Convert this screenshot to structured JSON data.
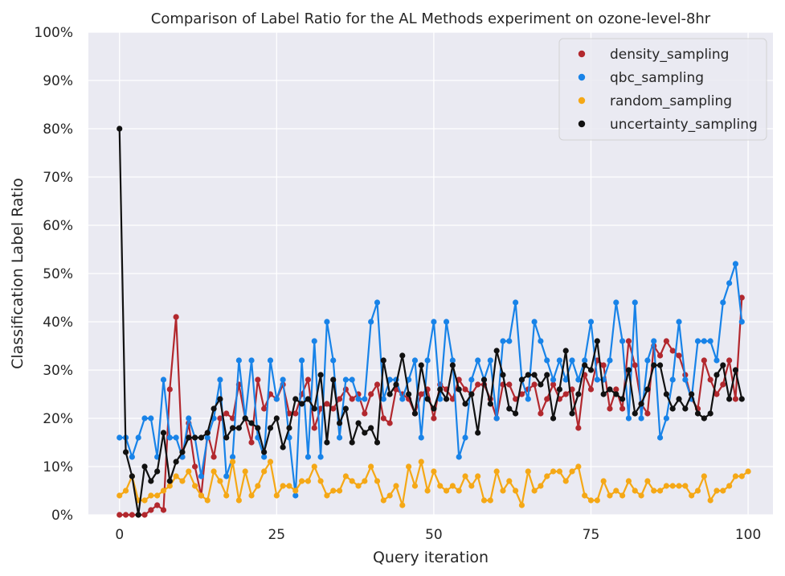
{
  "chart_data": {
    "type": "line",
    "title": "Comparison of Label Ratio for the AL Methods experiment on ozone-level-8hr",
    "xlabel": "Query iteration",
    "ylabel": "Classification Label Ratio",
    "xlim": [
      -4.95,
      103.95
    ],
    "ylim": [
      0,
      1
    ],
    "x_ticks": [
      0,
      25,
      50,
      75,
      100
    ],
    "y_ticks": [
      0,
      0.1,
      0.2,
      0.3,
      0.4,
      0.5,
      0.6,
      0.7,
      0.8,
      0.9,
      1.0
    ],
    "y_tick_labels": [
      "0%",
      "10%",
      "20%",
      "30%",
      "40%",
      "50%",
      "60%",
      "70%",
      "80%",
      "90%",
      "100%"
    ],
    "x_tick_labels": [
      "0",
      "25",
      "50",
      "75",
      "100"
    ],
    "grid": true,
    "legend_position": "top-right",
    "background": "#eaeaf2",
    "series": [
      {
        "name": "density_sampling",
        "color": "#b2282e",
        "values": [
          0,
          0,
          0,
          0,
          0,
          0.01,
          0.02,
          0.01,
          0.26,
          0.41,
          0.12,
          0.19,
          0.1,
          0.04,
          0.17,
          0.12,
          0.2,
          0.21,
          0.2,
          0.27,
          0.2,
          0.15,
          0.28,
          0.22,
          0.25,
          0.24,
          0.27,
          0.21,
          0.21,
          0.25,
          0.28,
          0.18,
          0.22,
          0.23,
          0.22,
          0.24,
          0.26,
          0.24,
          0.25,
          0.21,
          0.25,
          0.27,
          0.2,
          0.19,
          0.26,
          0.25,
          0.24,
          0.21,
          0.25,
          0.26,
          0.2,
          0.27,
          0.26,
          0.24,
          0.28,
          0.26,
          0.25,
          0.27,
          0.27,
          0.24,
          0.2,
          0.27,
          0.27,
          0.24,
          0.25,
          0.26,
          0.27,
          0.21,
          0.24,
          0.27,
          0.24,
          0.25,
          0.26,
          0.18,
          0.29,
          0.26,
          0.32,
          0.31,
          0.22,
          0.26,
          0.22,
          0.36,
          0.31,
          0.23,
          0.21,
          0.35,
          0.33,
          0.36,
          0.34,
          0.33,
          0.29,
          0.24,
          0.22,
          0.32,
          0.28,
          0.25,
          0.27,
          0.32,
          0.24,
          0.45
        ]
      },
      {
        "name": "qbc_sampling",
        "color": "#1883e8",
        "values": [
          0.16,
          0.16,
          0.12,
          0.16,
          0.2,
          0.2,
          0.12,
          0.28,
          0.16,
          0.16,
          0.12,
          0.2,
          0.16,
          0.08,
          0.16,
          0.2,
          0.28,
          0.08,
          0.12,
          0.32,
          0.2,
          0.32,
          0.16,
          0.12,
          0.32,
          0.24,
          0.28,
          0.16,
          0.04,
          0.32,
          0.12,
          0.36,
          0.12,
          0.4,
          0.32,
          0.16,
          0.28,
          0.28,
          0.24,
          0.24,
          0.4,
          0.44,
          0.24,
          0.28,
          0.28,
          0.24,
          0.28,
          0.32,
          0.16,
          0.32,
          0.4,
          0.24,
          0.4,
          0.32,
          0.12,
          0.16,
          0.28,
          0.32,
          0.28,
          0.32,
          0.2,
          0.36,
          0.36,
          0.44,
          0.28,
          0.24,
          0.4,
          0.36,
          0.32,
          0.28,
          0.32,
          0.28,
          0.32,
          0.28,
          0.32,
          0.4,
          0.28,
          0.28,
          0.32,
          0.44,
          0.36,
          0.2,
          0.44,
          0.2,
          0.32,
          0.36,
          0.16,
          0.2,
          0.28,
          0.4,
          0.28,
          0.24,
          0.36,
          0.36,
          0.36,
          0.32,
          0.44,
          0.48,
          0.52,
          0.4
        ]
      },
      {
        "name": "random_sampling",
        "color": "#f5a816",
        "values": [
          0.04,
          0.05,
          0.08,
          0.03,
          0.03,
          0.04,
          0.04,
          0.05,
          0.06,
          0.08,
          0.07,
          0.09,
          0.06,
          0.04,
          0.03,
          0.09,
          0.07,
          0.04,
          0.11,
          0.03,
          0.09,
          0.04,
          0.06,
          0.09,
          0.11,
          0.04,
          0.06,
          0.06,
          0.05,
          0.07,
          0.07,
          0.1,
          0.07,
          0.04,
          0.05,
          0.05,
          0.08,
          0.07,
          0.06,
          0.07,
          0.1,
          0.07,
          0.03,
          0.04,
          0.06,
          0.02,
          0.1,
          0.06,
          0.11,
          0.05,
          0.09,
          0.06,
          0.05,
          0.06,
          0.05,
          0.08,
          0.06,
          0.08,
          0.03,
          0.03,
          0.09,
          0.05,
          0.07,
          0.05,
          0.02,
          0.09,
          0.05,
          0.06,
          0.08,
          0.09,
          0.09,
          0.07,
          0.09,
          0.1,
          0.04,
          0.03,
          0.03,
          0.07,
          0.04,
          0.05,
          0.04,
          0.07,
          0.05,
          0.04,
          0.07,
          0.05,
          0.05,
          0.06,
          0.06,
          0.06,
          0.06,
          0.04,
          0.05,
          0.08,
          0.03,
          0.05,
          0.05,
          0.06,
          0.08,
          0.08,
          0.09
        ]
      },
      {
        "name": "uncertainty_sampling",
        "color": "#111111",
        "values": [
          0.8,
          0.13,
          0.08,
          0.0,
          0.1,
          0.07,
          0.09,
          0.17,
          0.07,
          0.11,
          0.13,
          0.16,
          0.16,
          0.16,
          0.17,
          0.22,
          0.24,
          0.16,
          0.18,
          0.18,
          0.2,
          0.19,
          0.18,
          0.13,
          0.18,
          0.2,
          0.14,
          0.18,
          0.24,
          0.23,
          0.24,
          0.22,
          0.29,
          0.15,
          0.28,
          0.19,
          0.22,
          0.15,
          0.19,
          0.17,
          0.18,
          0.15,
          0.32,
          0.25,
          0.27,
          0.33,
          0.25,
          0.21,
          0.31,
          0.24,
          0.22,
          0.26,
          0.24,
          0.31,
          0.26,
          0.23,
          0.25,
          0.17,
          0.28,
          0.23,
          0.34,
          0.29,
          0.22,
          0.21,
          0.28,
          0.29,
          0.29,
          0.27,
          0.29,
          0.2,
          0.26,
          0.34,
          0.21,
          0.25,
          0.31,
          0.3,
          0.36,
          0.25,
          0.26,
          0.25,
          0.24,
          0.3,
          0.21,
          0.23,
          0.26,
          0.31,
          0.31,
          0.25,
          0.22,
          0.24,
          0.22,
          0.25,
          0.21,
          0.2,
          0.21,
          0.29,
          0.31,
          0.24,
          0.3,
          0.24
        ]
      }
    ]
  }
}
